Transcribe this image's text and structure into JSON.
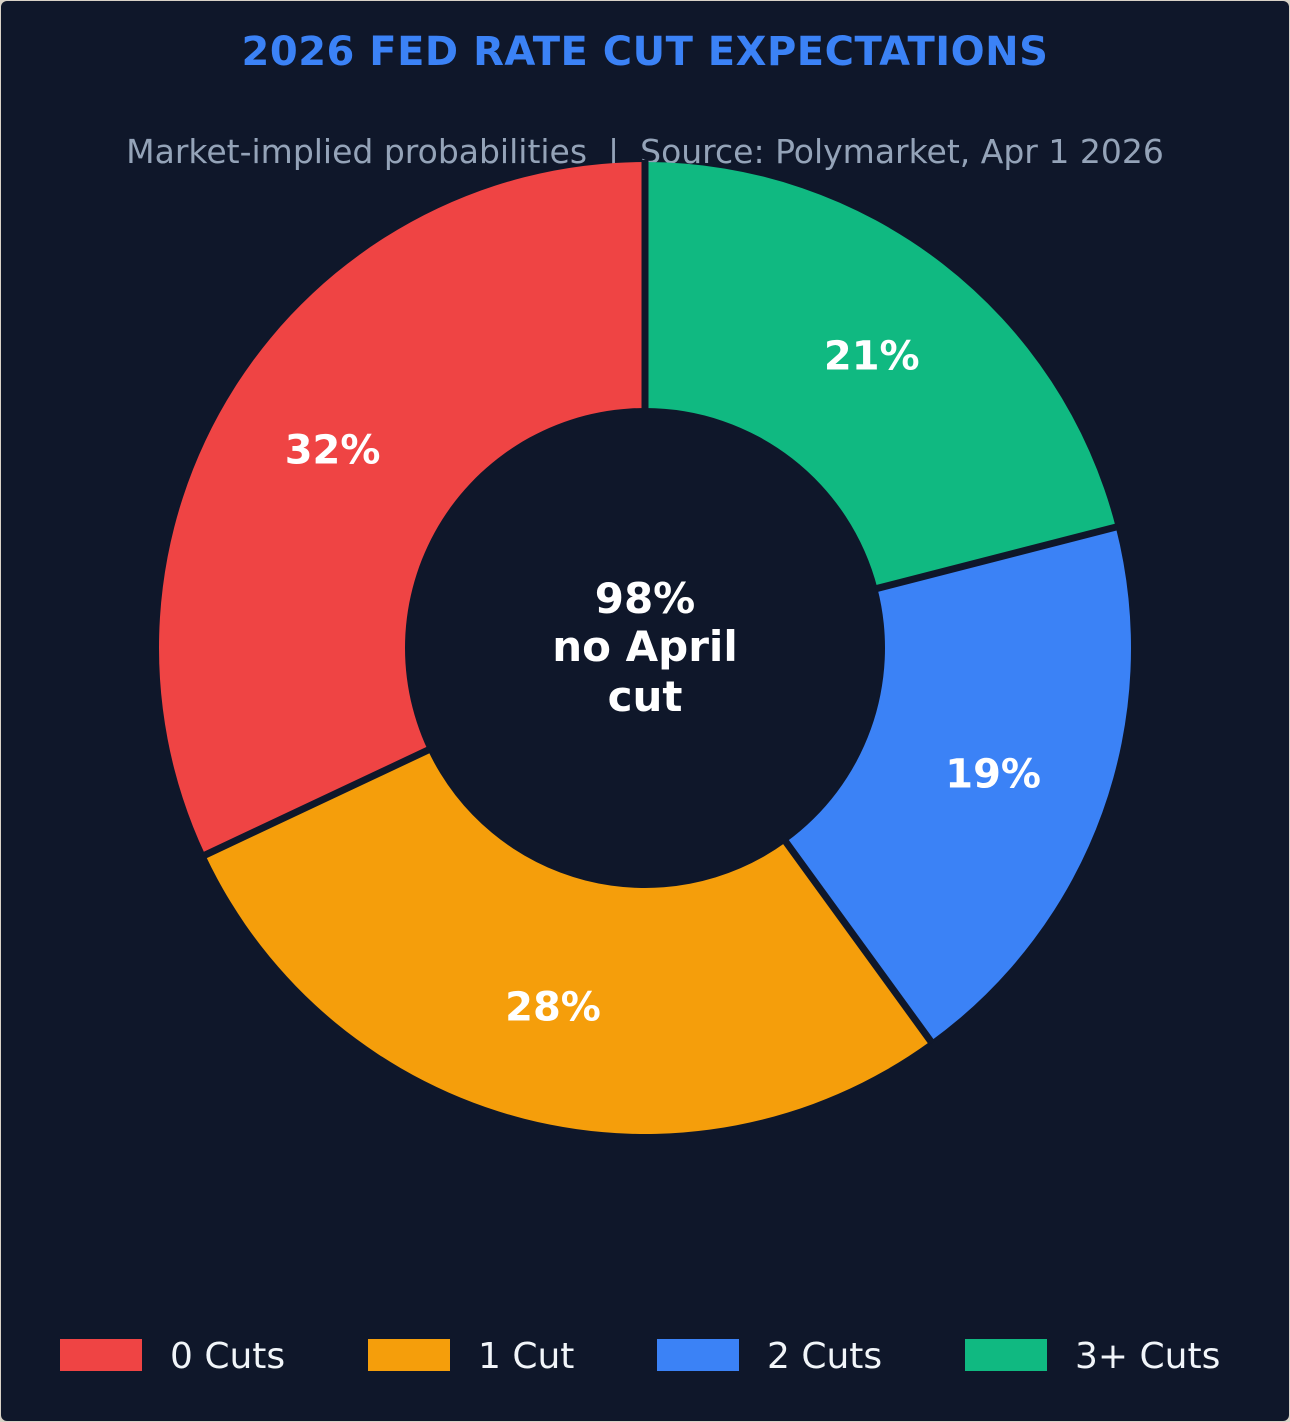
{
  "chart_data": {
    "type": "pie",
    "title": "2026 FED RATE CUT EXPECTATIONS",
    "subtitle": "Market-implied probabilities  |  Source: Polymarket, Apr 1 2026",
    "center_label": [
      "98%",
      "no April",
      "cut"
    ],
    "unit": "%",
    "legend_position": "bottom",
    "slices": [
      {
        "name": "0 Cuts",
        "value": 32,
        "label": "32%",
        "color": "#ef4444"
      },
      {
        "name": "1 Cut",
        "value": 28,
        "label": "28%",
        "color": "#f59e0b"
      },
      {
        "name": "2 Cuts",
        "value": 19,
        "label": "19%",
        "color": "#3b82f6"
      },
      {
        "name": "3+ Cuts",
        "value": 21,
        "label": "21%",
        "color": "#10b981"
      }
    ]
  },
  "colors": {
    "background": "#0f172a",
    "title": "#3b82f6",
    "subtitle": "#94a3b8",
    "label": "#ffffff"
  }
}
